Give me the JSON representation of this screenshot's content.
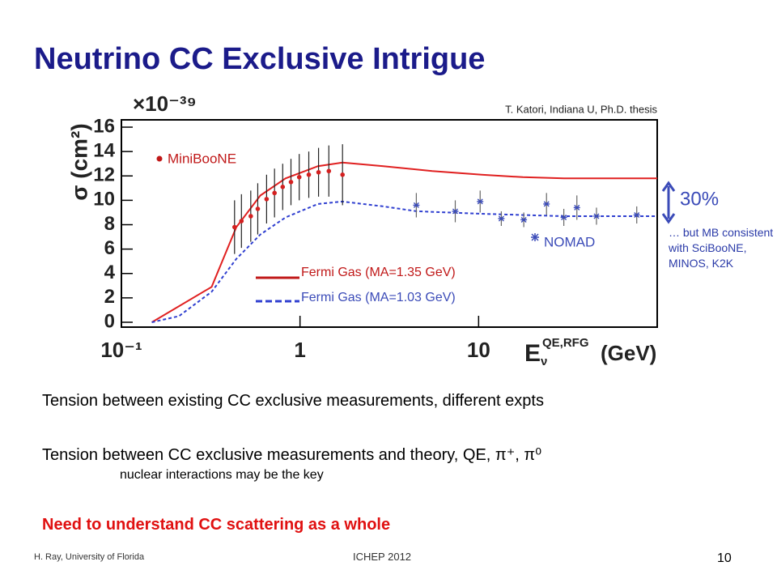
{
  "title": "Neutrino CC Exclusive Intrigue",
  "chart_data": {
    "type": "scatter",
    "source_note": "T. Katori, Indiana U, Ph.D. thesis",
    "y_scale_label": "×10⁻³⁹",
    "y_label": "σ (cm²)",
    "x_label": {
      "symbol": "E",
      "sub": "ν",
      "sup": "QE,RFG",
      "unit": "(GeV)"
    },
    "xscale": "log",
    "xlim": [
      0.1,
      100
    ],
    "xticks": [
      {
        "value": 0.1,
        "label": "10⁻¹"
      },
      1,
      10
    ],
    "ylim": [
      -0.4,
      16.6
    ],
    "yticks": [
      0,
      2,
      4,
      6,
      8,
      10,
      12,
      14,
      16
    ],
    "series": [
      {
        "name": "MiniBooNE",
        "kind": "points",
        "color": "#d42020",
        "x": [
          0.43,
          0.47,
          0.53,
          0.58,
          0.65,
          0.72,
          0.8,
          0.89,
          0.99,
          1.12,
          1.27,
          1.45,
          1.73
        ],
        "values": [
          7.8,
          8.3,
          8.7,
          9.3,
          10.1,
          10.6,
          11.1,
          11.5,
          11.9,
          12.1,
          12.3,
          12.4,
          12.1
        ],
        "errors": [
          2.2,
          2.2,
          2.1,
          2.1,
          2.0,
          2.0,
          1.9,
          1.9,
          1.9,
          1.9,
          2.0,
          2.1,
          2.5
        ]
      },
      {
        "name": "NOMAD",
        "kind": "points",
        "color": "#3b4bb8",
        "x": [
          4.48,
          7.4,
          10.2,
          13.4,
          17.9,
          24,
          30,
          35.5,
          45.7,
          76.8
        ],
        "values": [
          9.6,
          9.1,
          9.9,
          8.5,
          8.4,
          9.7,
          8.6,
          9.4,
          8.7,
          8.8
        ],
        "errors": [
          1.0,
          0.9,
          0.9,
          0.6,
          0.6,
          0.9,
          0.7,
          1.0,
          0.7,
          0.7
        ]
      },
      {
        "name": "Fermi Gas (MA=1.35 GeV)",
        "kind": "line",
        "dash": false,
        "color": "#e02020",
        "x": [
          0.148,
          0.32,
          0.44,
          0.6,
          0.83,
          1.26,
          1.73,
          2.93,
          5.5,
          10.4,
          17.7,
          30,
          100
        ],
        "values": [
          0,
          2.9,
          7.8,
          10.4,
          11.8,
          12.8,
          13.1,
          12.8,
          12.4,
          12.1,
          11.9,
          11.8,
          11.8
        ]
      },
      {
        "name": "Fermi Gas (MA=1.03 GeV)",
        "kind": "line",
        "dash": true,
        "color": "#2f3fd0",
        "x": [
          0.148,
          0.21,
          0.32,
          0.44,
          0.6,
          0.83,
          1.26,
          1.73,
          2.93,
          4.5,
          10.4,
          30,
          100
        ],
        "values": [
          0,
          0.5,
          2.5,
          5.2,
          7.2,
          8.6,
          9.7,
          9.9,
          9.5,
          9.1,
          8.9,
          8.7,
          8.7
        ]
      }
    ],
    "annotation": {
      "label": "30%",
      "note": "… but MB consistent with SciBooNE, MINOS, K2K"
    }
  },
  "body": [
    "Tension between existing CC exclusive measurements, different expts",
    "Tension between CC exclusive measurements and theory, QE, π⁺, π⁰",
    "nuclear interactions may be the key",
    "Need to understand CC scattering as a whole"
  ],
  "footer": {
    "author": "H. Ray, University of Florida",
    "event": "ICHEP 2012",
    "page": "10"
  }
}
